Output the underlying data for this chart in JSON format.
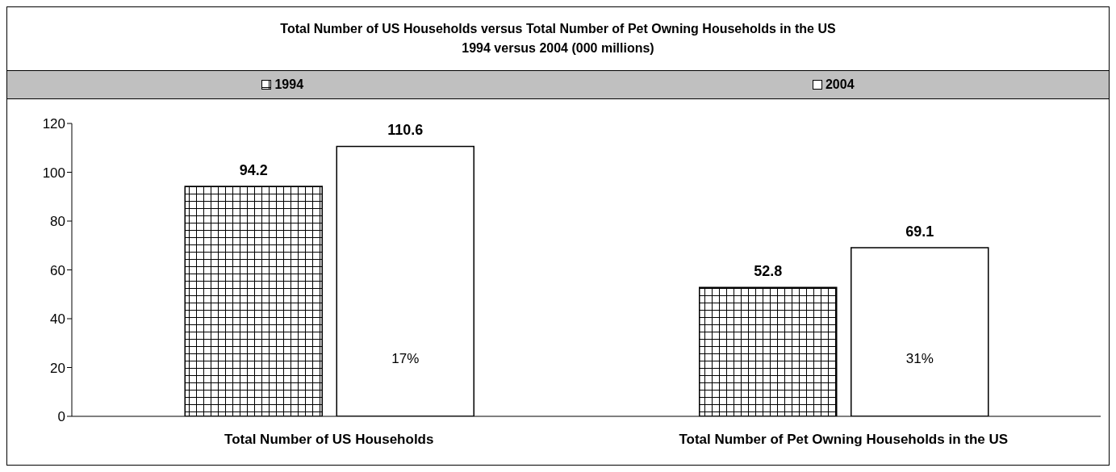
{
  "chart_data": {
    "type": "bar",
    "title": "Total Number of US Households versus Total Number of Pet Owning Households in the US",
    "subtitle": "1994 versus 2004 (000 millions)",
    "categories": [
      "Total Number of US Households",
      "Total Number of Pet Owning Households in the US"
    ],
    "series": [
      {
        "name": "1994",
        "color": "#000000",
        "values": [
          94.2,
          52.8
        ]
      },
      {
        "name": "2004",
        "color": "#ffffff",
        "values": [
          110.6,
          69.1
        ]
      }
    ],
    "ylim": [
      0,
      120
    ],
    "yticks": [
      0,
      20,
      40,
      60,
      80,
      100,
      120
    ],
    "grid": false,
    "legend": "top",
    "data_labels": true,
    "annotations": [
      "17%",
      "31%"
    ]
  }
}
